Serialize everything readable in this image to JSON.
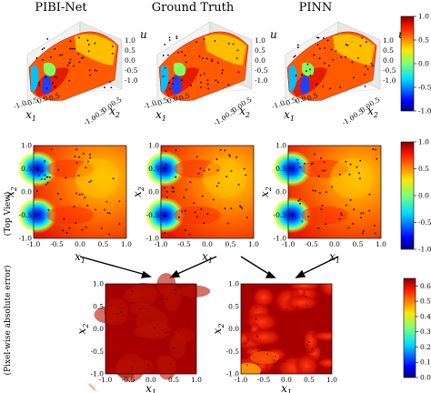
{
  "chart_data": {
    "type": "heatmap",
    "column_titles": [
      "PIBI-Net",
      "Ground Truth",
      "PINN"
    ],
    "row_labels": [
      "(Top View)",
      "(Pixel-wise absolute error)"
    ],
    "axes": {
      "x_label": "x",
      "x_sub": "1",
      "y_label": "x",
      "y_sub": "2",
      "z_label": "u"
    },
    "surface_ticks_3d": {
      "x": [
        "-1.0",
        "-0.5",
        "0.0",
        "0.5"
      ],
      "y": [
        "-1.0",
        "-0.5",
        "0.0",
        "0.5"
      ],
      "z": [
        "1.0",
        "0.5",
        "0.0",
        "-0.5",
        "-1.0"
      ]
    },
    "heatmap_ticks": {
      "x": [
        "-1.0",
        "-0.5",
        "0.0",
        "0.5",
        "1.0"
      ],
      "y": [
        "1.0",
        "0.5",
        "0.0",
        "-0.5",
        "-1.0"
      ]
    },
    "xlim": [
      -1.0,
      1.0
    ],
    "ylim": [
      -1.0,
      1.0
    ],
    "colorbar_solution": {
      "range": [
        -1.0,
        1.0
      ],
      "ticks": [
        "1.0",
        "0.5",
        "0.0",
        "-0.5",
        "-1.0"
      ]
    },
    "colorbar_error": {
      "range": [
        0.0,
        0.65
      ],
      "ticks": [
        "0.6",
        "0.5",
        "0.4",
        "0.3",
        "0.2",
        "0.1",
        "0.0"
      ]
    },
    "colormap": "jet",
    "panels": [
      "PIBI-Net surface",
      "Ground Truth surface",
      "PINN surface",
      "PIBI-Net top view",
      "Ground Truth top view",
      "PINN top view",
      "PIBI-Net error",
      "PINN error"
    ]
  }
}
